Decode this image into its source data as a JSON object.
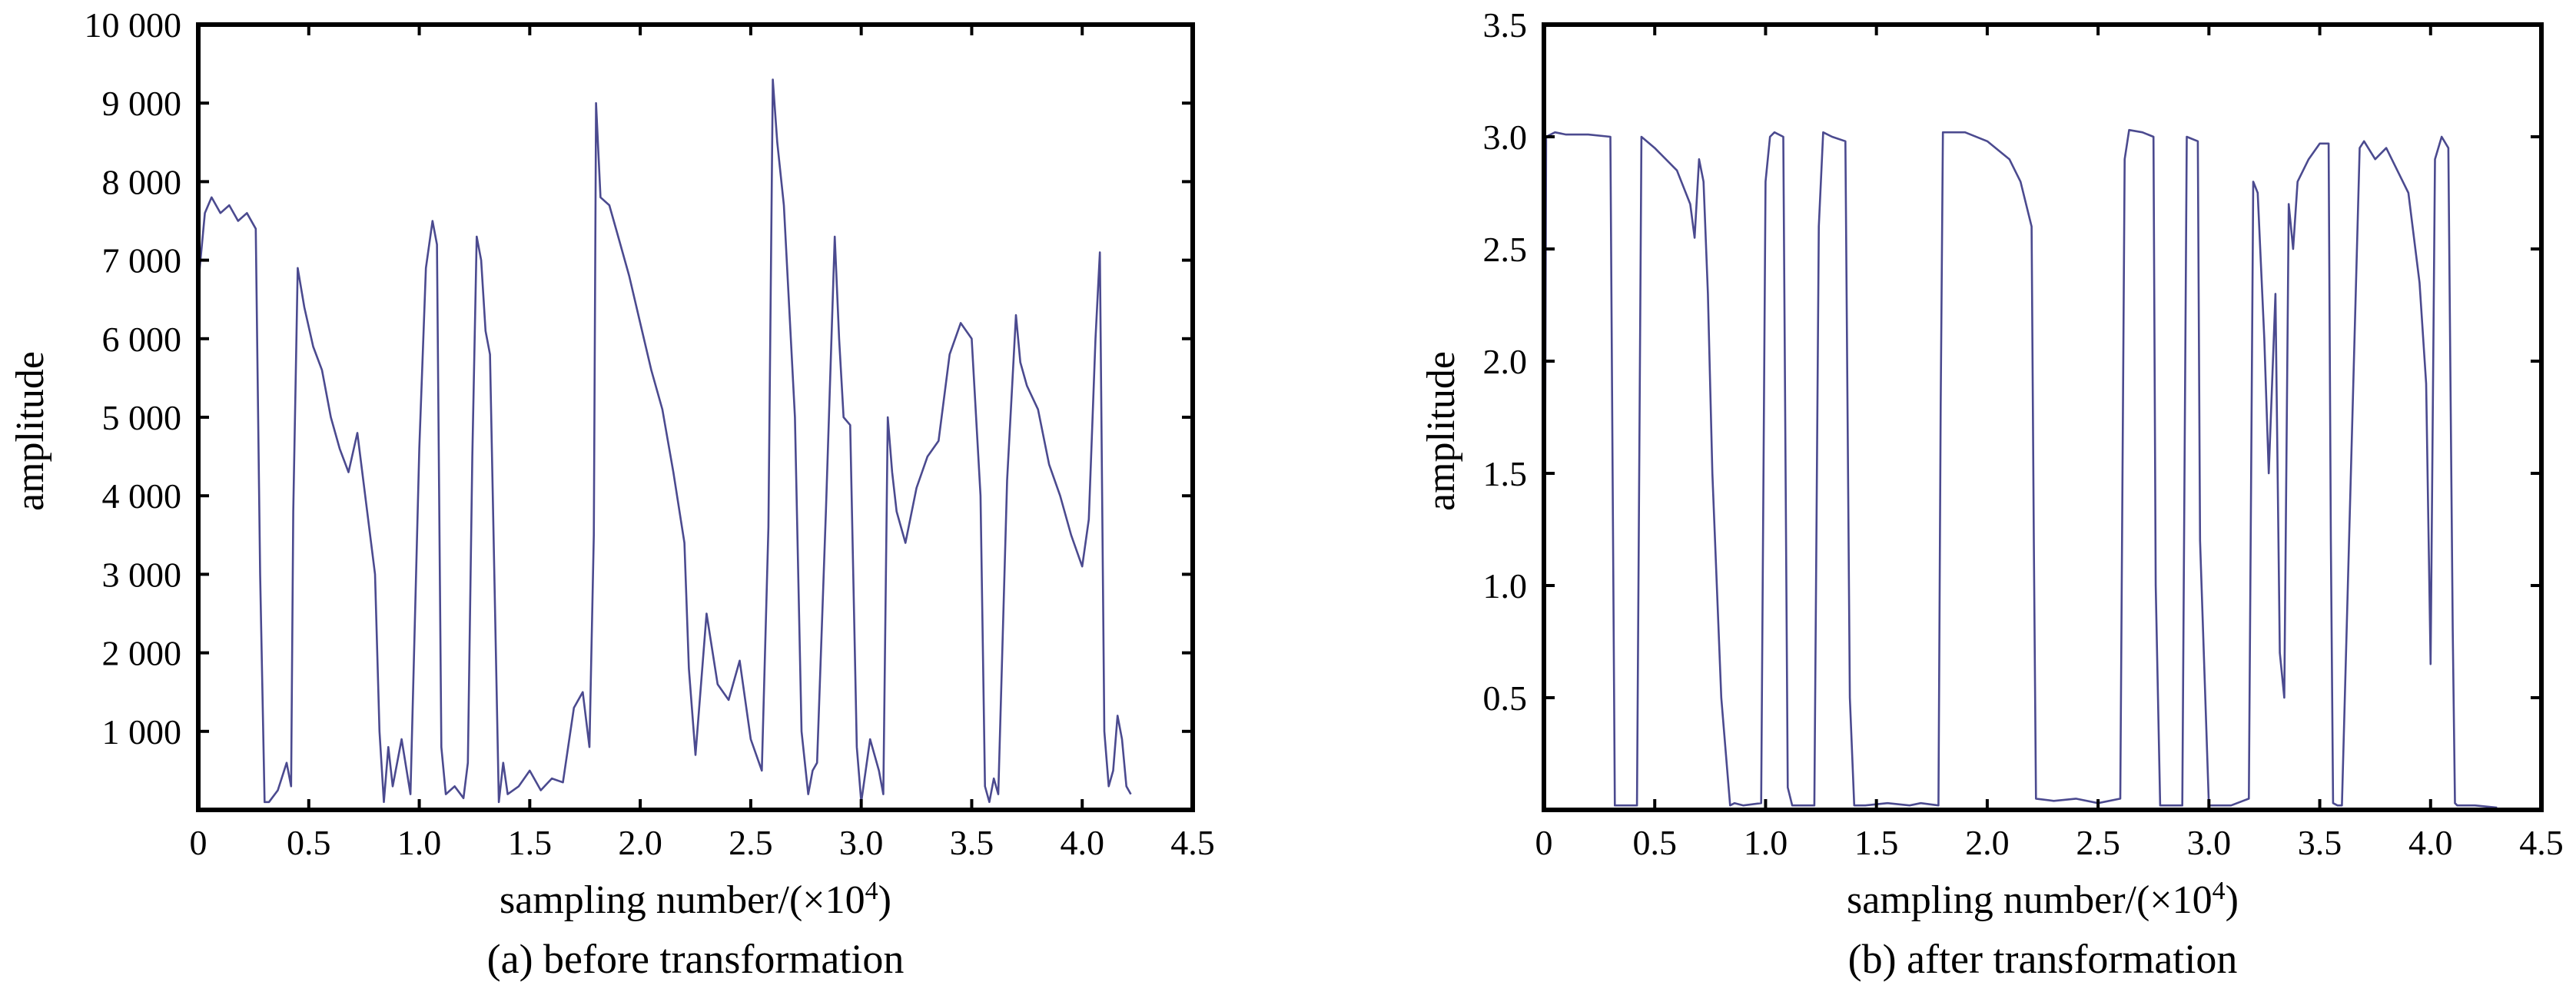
{
  "chart_data": [
    {
      "type": "line",
      "caption": "(a) before transformation",
      "xlabel": "sampling number/(×10",
      "xlabel_sup": "4",
      "xlabel_end": ")",
      "ylabel": "amplitude",
      "xlim": [
        0,
        4.5
      ],
      "ylim": [
        0,
        10000
      ],
      "xticks": [
        0,
        0.5,
        1.0,
        1.5,
        2.0,
        2.5,
        3.0,
        3.5,
        4.0,
        4.5
      ],
      "xtick_labels": [
        "0",
        "0.5",
        "1.0",
        "1.5",
        "2.0",
        "2.5",
        "3.0",
        "3.5",
        "4.0",
        "4.5"
      ],
      "yticks": [
        1000,
        2000,
        3000,
        4000,
        5000,
        6000,
        7000,
        8000,
        9000,
        10000
      ],
      "ytick_labels": [
        "1 000",
        "2 000",
        "3 000",
        "4 000",
        "5 000",
        "6 000",
        "7 000",
        "8 000",
        "9 000",
        "10 000"
      ],
      "grid": false,
      "series": [
        {
          "color": "#4b4a8f",
          "x": [
            0,
            0.03,
            0.06,
            0.1,
            0.14,
            0.18,
            0.22,
            0.26,
            0.28,
            0.3,
            0.32,
            0.36,
            0.4,
            0.42,
            0.43,
            0.45,
            0.48,
            0.52,
            0.56,
            0.6,
            0.64,
            0.68,
            0.72,
            0.76,
            0.8,
            0.82,
            0.84,
            0.86,
            0.88,
            0.92,
            0.96,
            1.0,
            1.03,
            1.06,
            1.08,
            1.1,
            1.12,
            1.16,
            1.2,
            1.22,
            1.24,
            1.26,
            1.28,
            1.3,
            1.32,
            1.36,
            1.38,
            1.4,
            1.45,
            1.5,
            1.55,
            1.6,
            1.65,
            1.7,
            1.74,
            1.77,
            1.79,
            1.8,
            1.82,
            1.86,
            1.9,
            1.95,
            2.0,
            2.05,
            2.1,
            2.15,
            2.2,
            2.22,
            2.25,
            2.3,
            2.35,
            2.4,
            2.45,
            2.5,
            2.55,
            2.58,
            2.6,
            2.62,
            2.65,
            2.7,
            2.73,
            2.76,
            2.78,
            2.8,
            2.84,
            2.88,
            2.9,
            2.92,
            2.95,
            2.98,
            3.0,
            3.04,
            3.08,
            3.1,
            3.12,
            3.14,
            3.16,
            3.2,
            3.25,
            3.3,
            3.35,
            3.4,
            3.45,
            3.5,
            3.54,
            3.56,
            3.58,
            3.6,
            3.62,
            3.66,
            3.7,
            3.72,
            3.75,
            3.8,
            3.85,
            3.9,
            3.95,
            4.0,
            4.03,
            4.06,
            4.08,
            4.1,
            4.12,
            4.14,
            4.16,
            4.18,
            4.2,
            4.22
          ],
          "y": [
            6700,
            7600,
            7800,
            7600,
            7700,
            7500,
            7600,
            7400,
            3000,
            100,
            100,
            250,
            600,
            300,
            3800,
            6900,
            6400,
            5900,
            5600,
            5000,
            4600,
            4300,
            4800,
            3900,
            3000,
            1000,
            100,
            800,
            300,
            900,
            200,
            4600,
            6900,
            7500,
            7200,
            800,
            200,
            300,
            150,
            600,
            4500,
            7300,
            7000,
            6100,
            5800,
            100,
            600,
            200,
            300,
            500,
            250,
            400,
            350,
            1300,
            1500,
            800,
            3500,
            9000,
            7800,
            7700,
            7300,
            6800,
            6200,
            5600,
            5100,
            4300,
            3400,
            1800,
            700,
            2500,
            1600,
            1400,
            1900,
            900,
            500,
            3600,
            9300,
            8500,
            7700,
            5000,
            1000,
            200,
            500,
            600,
            3800,
            7300,
            6000,
            5000,
            4900,
            800,
            100,
            900,
            500,
            200,
            5000,
            4300,
            3800,
            3400,
            4100,
            4500,
            4700,
            5800,
            6200,
            6000,
            4000,
            300,
            100,
            400,
            200,
            4200,
            6300,
            5700,
            5400,
            5100,
            4400,
            4000,
            3500,
            3100,
            3700,
            6000,
            7100,
            1000,
            300,
            500,
            1200,
            900,
            300,
            200
          ]
        }
      ]
    },
    {
      "type": "line",
      "caption": "(b) after transformation",
      "xlabel": "sampling number/(×10",
      "xlabel_sup": "4",
      "xlabel_end": ")",
      "ylabel": "amplitude",
      "xlim": [
        0,
        4.5
      ],
      "ylim": [
        0,
        3.5
      ],
      "xticks": [
        0,
        0.5,
        1.0,
        1.5,
        2.0,
        2.5,
        3.0,
        3.5,
        4.0,
        4.5
      ],
      "xtick_labels": [
        "0",
        "0.5",
        "1.0",
        "1.5",
        "2.0",
        "2.5",
        "3.0",
        "3.5",
        "4.0",
        "4.5"
      ],
      "yticks": [
        0.5,
        1.0,
        1.5,
        2.0,
        2.5,
        3.0,
        3.5
      ],
      "ytick_labels": [
        "0.5",
        "1.0",
        "1.5",
        "2.0",
        "2.5",
        "3.0",
        "3.5"
      ],
      "grid": false,
      "series": [
        {
          "color": "#4b4a8f",
          "x": [
            0,
            0.01,
            0.05,
            0.1,
            0.2,
            0.3,
            0.31,
            0.32,
            0.42,
            0.43,
            0.44,
            0.5,
            0.6,
            0.66,
            0.68,
            0.7,
            0.72,
            0.74,
            0.76,
            0.8,
            0.84,
            0.86,
            0.9,
            0.98,
            1.0,
            1.02,
            1.04,
            1.08,
            1.1,
            1.12,
            1.22,
            1.24,
            1.26,
            1.3,
            1.36,
            1.38,
            1.4,
            1.45,
            1.55,
            1.65,
            1.7,
            1.78,
            1.79,
            1.8,
            1.9,
            2.0,
            2.1,
            2.15,
            2.2,
            2.21,
            2.22,
            2.3,
            2.4,
            2.5,
            2.6,
            2.62,
            2.64,
            2.7,
            2.75,
            2.76,
            2.78,
            2.85,
            2.88,
            2.9,
            2.95,
            2.96,
            3.0,
            3.1,
            3.18,
            3.2,
            3.22,
            3.25,
            3.27,
            3.3,
            3.32,
            3.34,
            3.36,
            3.38,
            3.4,
            3.45,
            3.5,
            3.54,
            3.55,
            3.56,
            3.58,
            3.6,
            3.68,
            3.7,
            3.75,
            3.8,
            3.85,
            3.9,
            3.95,
            3.98,
            4.0,
            4.02,
            4.05,
            4.08,
            4.1,
            4.11,
            4.12,
            4.2,
            4.3
          ],
          "y": [
            0,
            3.0,
            3.02,
            3.01,
            3.01,
            3.0,
            1.5,
            0.02,
            0.02,
            1.5,
            3.0,
            2.95,
            2.85,
            2.7,
            2.55,
            2.9,
            2.8,
            2.3,
            1.5,
            0.5,
            0.02,
            0.03,
            0.02,
            0.03,
            2.8,
            3.0,
            3.02,
            3.0,
            0.1,
            0.02,
            0.02,
            2.6,
            3.02,
            3.0,
            2.98,
            0.5,
            0.02,
            0.02,
            0.03,
            0.02,
            0.03,
            0.02,
            1.8,
            3.02,
            3.02,
            2.98,
            2.9,
            2.8,
            2.6,
            1.2,
            0.05,
            0.04,
            0.05,
            0.03,
            0.05,
            2.9,
            3.03,
            3.02,
            3.0,
            1.0,
            0.02,
            0.02,
            0.02,
            3.0,
            2.98,
            1.2,
            0.02,
            0.02,
            0.05,
            2.8,
            2.75,
            2.1,
            1.5,
            2.3,
            0.7,
            0.5,
            2.7,
            2.5,
            2.8,
            2.9,
            2.97,
            2.97,
            1.2,
            0.03,
            0.02,
            0.02,
            2.95,
            2.98,
            2.9,
            2.95,
            2.85,
            2.75,
            2.35,
            1.9,
            0.65,
            2.9,
            3.0,
            2.95,
            0.8,
            0.03,
            0.02,
            0.02,
            0.01
          ]
        }
      ]
    }
  ]
}
